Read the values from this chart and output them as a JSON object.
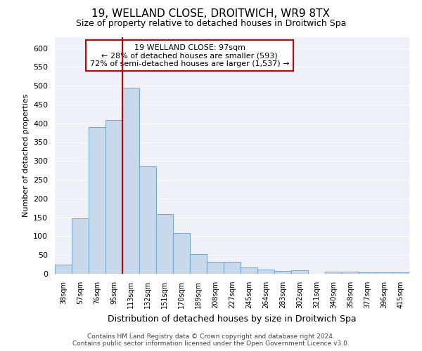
{
  "title": "19, WELLAND CLOSE, DROITWICH, WR9 8TX",
  "subtitle": "Size of property relative to detached houses in Droitwich Spa",
  "xlabel": "Distribution of detached houses by size in Droitwich Spa",
  "ylabel": "Number of detached properties",
  "categories": [
    "38sqm",
    "57sqm",
    "76sqm",
    "95sqm",
    "113sqm",
    "132sqm",
    "151sqm",
    "170sqm",
    "189sqm",
    "208sqm",
    "227sqm",
    "245sqm",
    "264sqm",
    "283sqm",
    "302sqm",
    "321sqm",
    "340sqm",
    "358sqm",
    "377sqm",
    "396sqm",
    "415sqm"
  ],
  "values": [
    25,
    148,
    390,
    408,
    495,
    285,
    158,
    108,
    53,
    32,
    32,
    17,
    12,
    7,
    9,
    0,
    5,
    5,
    4,
    4,
    4
  ],
  "bar_color": "#c9d9ec",
  "bar_edge_color": "#7aaace",
  "vline_x": 3.5,
  "vline_color": "#cc0000",
  "annotation_text": "19 WELLAND CLOSE: 97sqm\n← 28% of detached houses are smaller (593)\n72% of semi-detached houses are larger (1,537) →",
  "annotation_box_color": "#ffffff",
  "annotation_box_edge": "#cc0000",
  "ylim": [
    0,
    630
  ],
  "yticks": [
    0,
    50,
    100,
    150,
    200,
    250,
    300,
    350,
    400,
    450,
    500,
    550,
    600
  ],
  "background_color": "#eef2f8",
  "grid_color": "#ffffff",
  "footer_line1": "Contains HM Land Registry data © Crown copyright and database right 2024.",
  "footer_line2": "Contains public sector information licensed under the Open Government Licence v3.0."
}
